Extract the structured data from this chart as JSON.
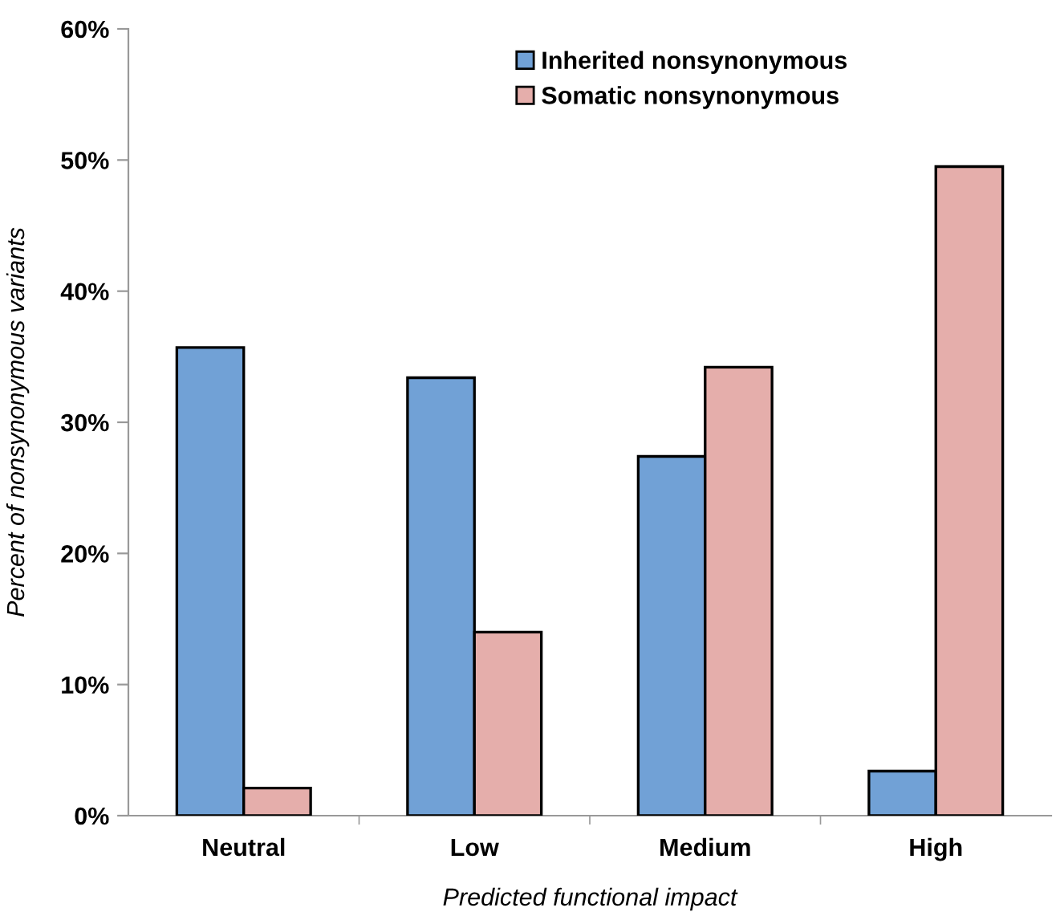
{
  "chart_data": {
    "type": "bar",
    "xlabel": "Predicted functional impact",
    "ylabel": "Percent of nonsynonymous variants",
    "categories": [
      "Neutral",
      "Low",
      "Medium",
      "High"
    ],
    "series": [
      {
        "name": "Inherited nonsynonymous",
        "color": "#71a1d6",
        "values": [
          35.7,
          33.4,
          27.4,
          3.4
        ]
      },
      {
        "name": "Somatic nonsynonymous",
        "color": "#e5aeab",
        "values": [
          2.1,
          14.0,
          34.2,
          49.5
        ]
      }
    ],
    "ylim": [
      0,
      60
    ],
    "yticks": [
      {
        "value": 0,
        "label": "0%"
      },
      {
        "value": 10,
        "label": "10%"
      },
      {
        "value": 20,
        "label": "20%"
      },
      {
        "value": 30,
        "label": "30%"
      },
      {
        "value": 40,
        "label": "40%"
      },
      {
        "value": 50,
        "label": "50%"
      },
      {
        "value": 60,
        "label": "60%"
      }
    ],
    "grid": false,
    "legend": "top"
  }
}
